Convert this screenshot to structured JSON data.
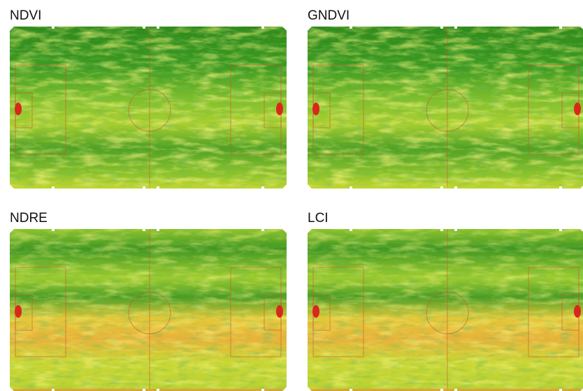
{
  "panels": [
    {
      "title": "NDVI"
    },
    {
      "title": "GNDVI"
    },
    {
      "title": "NDRE"
    },
    {
      "title": "LCI"
    }
  ]
}
